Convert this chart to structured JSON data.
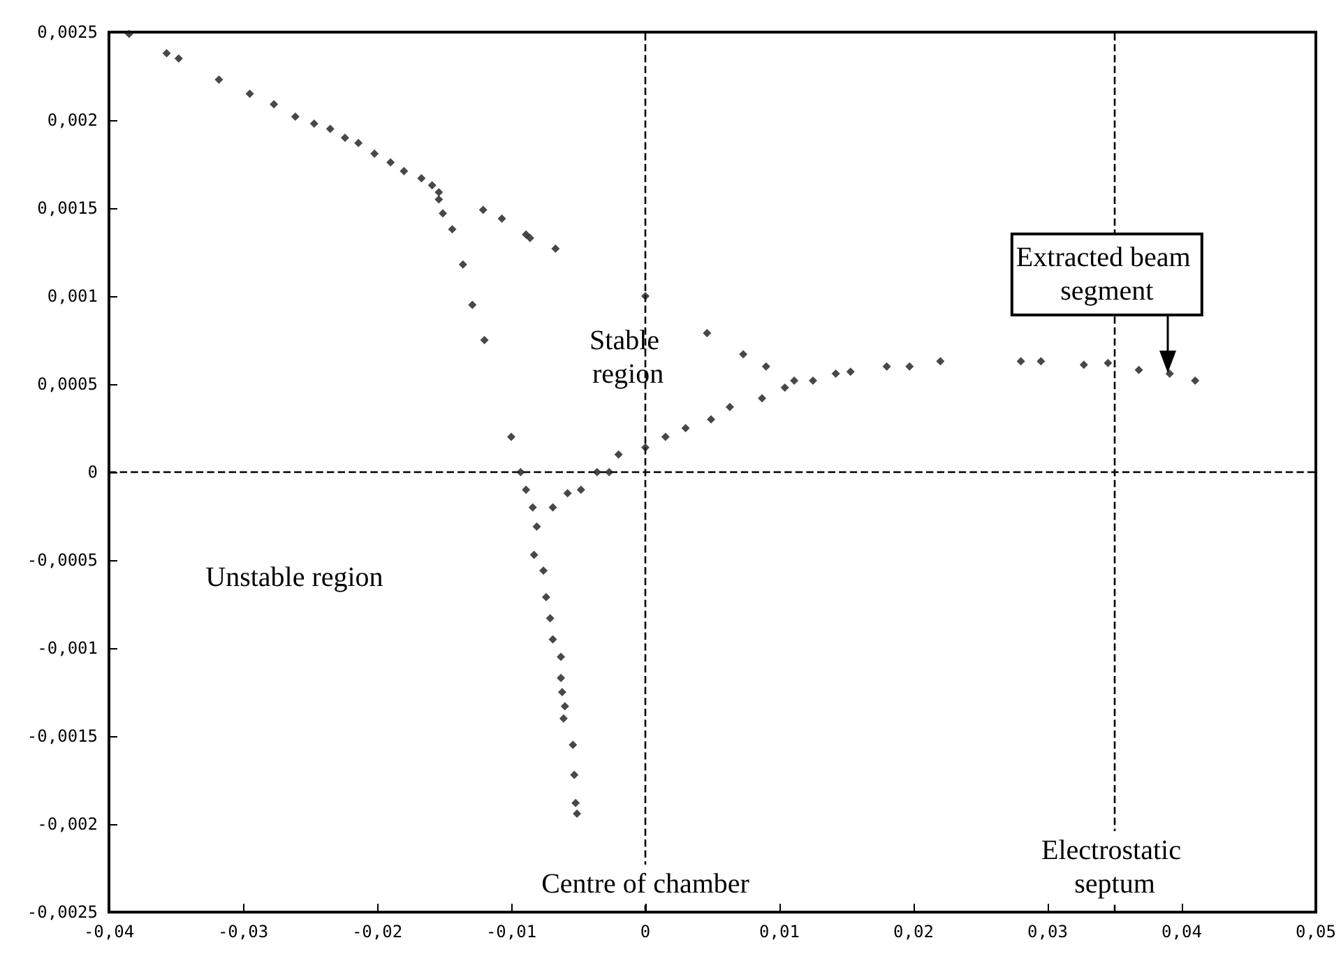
{
  "chart_data": {
    "type": "scatter",
    "x": [
      -0.0385,
      -0.0357,
      -0.0348,
      -0.0318,
      -0.0295,
      -0.0277,
      -0.0261,
      -0.0247,
      -0.0235,
      -0.0224,
      -0.0214,
      -0.0202,
      -0.019,
      -0.018,
      -0.0167,
      -0.0159,
      -0.0154,
      -0.0154,
      -0.0151,
      -0.0144,
      -0.0121,
      -0.0107,
      -0.0089,
      -0.0086,
      -0.0067,
      -0.0136,
      -0.0129,
      -0.012,
      -0.01,
      -0.0093,
      -0.0089,
      -0.0084,
      -0.0081,
      -0.0083,
      -0.0076,
      -0.0074,
      -0.0071,
      -0.0069,
      -0.0063,
      -0.0063,
      -0.0062,
      -0.006,
      -0.0061,
      -0.0054,
      -0.0053,
      -0.0052,
      -0.0051,
      -0.0069,
      -0.0058,
      -0.0048,
      -0.0036,
      -0.0027,
      -0.002,
      0,
      0.0015,
      0.003,
      0.0049,
      0.0063,
      0.0087,
      0.0104,
      0,
      0.0046,
      0.0073,
      0.009,
      0.0111,
      0.0125,
      0.0142,
      0.0153,
      0.018,
      0.0197,
      0.022,
      0.028,
      0.0295,
      0.0327,
      0.0345,
      0.0368,
      0.0391,
      0.041
    ],
    "values": [
      0.00249,
      0.00238,
      0.00235,
      0.00223,
      0.00215,
      0.00209,
      0.00202,
      0.00198,
      0.00195,
      0.0019,
      0.00187,
      0.00181,
      0.00176,
      0.00171,
      0.00167,
      0.00163,
      0.00159,
      0.00155,
      0.00147,
      0.00138,
      0.00149,
      0.00144,
      0.00135,
      0.00133,
      0.00127,
      0.00118,
      0.00095,
      0.00075,
      0.0002,
      0,
      -0.0001,
      -0.0002,
      -0.00031,
      -0.00047,
      -0.00056,
      -0.00071,
      -0.00083,
      -0.00095,
      -0.00105,
      -0.00117,
      -0.00125,
      -0.00133,
      -0.0014,
      -0.00155,
      -0.00172,
      -0.00188,
      -0.00194,
      -0.0002,
      -0.00012,
      -0.0001,
      0,
      0,
      0.0001,
      0.00014,
      0.0002,
      0.00025,
      0.0003,
      0.00037,
      0.00042,
      0.00048,
      0.001,
      0.00079,
      0.00067,
      0.0006,
      0.00052,
      0.00052,
      0.00056,
      0.00057,
      0.0006,
      0.0006,
      0.00063,
      0.00063,
      0.00063,
      0.00061,
      0.00062,
      0.00058,
      0.00056,
      0.00052
    ],
    "color": "#1a1a1a",
    "marker": "diamond",
    "grid": false,
    "xlim": [
      -0.04,
      0.05
    ],
    "xticks": [
      {
        "value": -0.04,
        "label": "-0,04"
      },
      {
        "value": -0.03,
        "label": "-0,03"
      },
      {
        "value": -0.02,
        "label": "-0,02"
      },
      {
        "value": -0.01,
        "label": "-0,01"
      },
      0,
      {
        "value": 0.01,
        "label": "0,01"
      },
      {
        "value": 0.02,
        "label": "0,02"
      },
      {
        "value": 0.03,
        "label": "0,03"
      },
      {
        "value": 0.04,
        "label": "0,04"
      },
      {
        "value": 0.05,
        "label": "0,05"
      }
    ],
    "ylim": [
      -0.0025,
      0.0025
    ],
    "yticks": [
      {
        "value": -0.0025,
        "label": "-0,0025"
      },
      {
        "value": -0.002,
        "label": "-0,002"
      },
      {
        "value": -0.0015,
        "label": "-0,0015"
      },
      {
        "value": -0.001,
        "label": "-0,001"
      },
      {
        "value": -0.0005,
        "label": "-0,0005"
      },
      0,
      {
        "value": 0.0005,
        "label": "0,0005"
      },
      {
        "value": 0.001,
        "label": "0,001"
      },
      {
        "value": 0.0015,
        "label": "0,0015"
      },
      {
        "value": 0.002,
        "label": "0,002"
      },
      {
        "value": 0.0025,
        "label": "0,0025"
      }
    ],
    "ref_lines": [
      {
        "axis": "x",
        "value": 0,
        "label": "Centre of chamber",
        "line_style": "dashed",
        "color": "#000000"
      },
      {
        "axis": "y",
        "value": 0,
        "label": null,
        "line_style": "dashed",
        "color": "#000000"
      },
      {
        "axis": "x",
        "value": 0.035,
        "label": "Electrostatic septum",
        "line_style": "dashed",
        "color": "#000000"
      }
    ],
    "annotations": [
      "Stable region",
      "Unstable region",
      {
        "text": "Extracted beam segment",
        "x": 0.039,
        "y": 0.00056
      }
    ]
  }
}
